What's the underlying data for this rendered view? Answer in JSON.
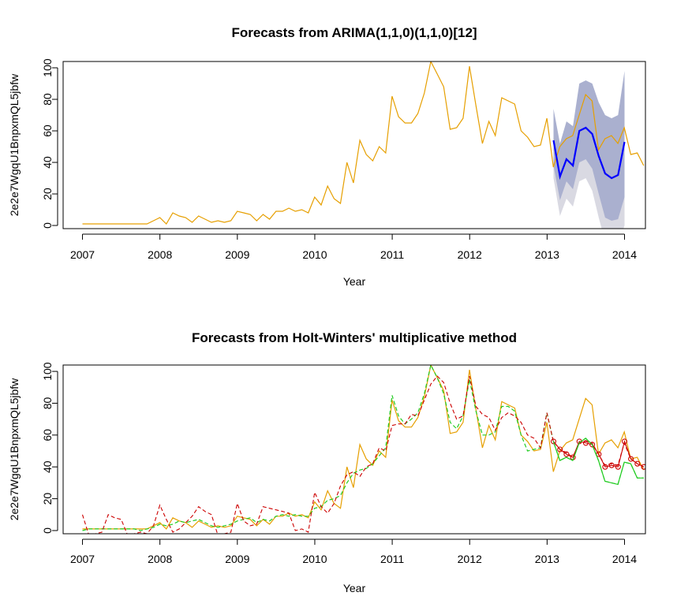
{
  "chart_data": [
    {
      "type": "line",
      "title": "Forecasts from ARIMA(1,1,0)(1,1,0)[12]",
      "xlabel": "Year",
      "ylabel": "2e2e7WgqU1BnpxmQL5jbfw",
      "xlim": [
        2006.75,
        2014.27
      ],
      "ylim": [
        -2,
        104
      ],
      "x_ticks": [
        2007,
        2008,
        2009,
        2010,
        2011,
        2012,
        2013,
        2014
      ],
      "y_ticks": [
        0,
        20,
        40,
        60,
        80,
        100
      ],
      "colors": {
        "observed": "#E69F00",
        "forecast": "#0000FF",
        "band80": "#AAB0CF",
        "band95": "#D9D9E2"
      },
      "series": [
        {
          "x_start": 2007.0,
          "x_step": 0.0833,
          "values": [
            1,
            1,
            1,
            1,
            1,
            1,
            1,
            1,
            1,
            1,
            1,
            3,
            5,
            1,
            8,
            6,
            5,
            2,
            6,
            4,
            2,
            3,
            2,
            3,
            9,
            8,
            7,
            3,
            7,
            4,
            9,
            9,
            11,
            9,
            10,
            8,
            18,
            13,
            25,
            17,
            14,
            40,
            27,
            54,
            45,
            41,
            50,
            46,
            82,
            69,
            65,
            65,
            71,
            84,
            104,
            96,
            88,
            61,
            62,
            68,
            101,
            76,
            52,
            66,
            57,
            81,
            79,
            77,
            60,
            56,
            50,
            51,
            68,
            37,
            50,
            55,
            57,
            70,
            83,
            79,
            48,
            55,
            57,
            52,
            62,
            45,
            46,
            38
          ]
        },
        {
          "x_start": 2013.0833,
          "x_step": 0.0833,
          "values": [
            54,
            31,
            42,
            38,
            60,
            62,
            58,
            44,
            33,
            30,
            32,
            53
          ]
        },
        {
          "x_start": 2013.0833,
          "x_step": 0.0833,
          "values": [
            74,
            52,
            66,
            63,
            90,
            92,
            90,
            78,
            70,
            68,
            70,
            98
          ]
        },
        {
          "x_start": 2013.0833,
          "x_step": 0.0833,
          "values": [
            68,
            44,
            55,
            52,
            80,
            82,
            80,
            68,
            58,
            55,
            57,
            85
          ]
        },
        {
          "x_start": 2013.0833,
          "x_step": 0.0833,
          "values": [
            38,
            16,
            28,
            23,
            40,
            42,
            36,
            20,
            5,
            3,
            4,
            18
          ]
        },
        {
          "x_start": 2013.0833,
          "x_step": 0.0833,
          "values": [
            30,
            6,
            17,
            12,
            28,
            30,
            22,
            5,
            -10,
            -12,
            -12,
            0
          ]
        }
      ]
    },
    {
      "type": "line",
      "title": "Forecasts from Holt-Winters' multiplicative method",
      "xlabel": "Year",
      "ylabel": "2e2e7WgqU1BnpxmQL5jbfw",
      "xlim": [
        2006.75,
        2014.27
      ],
      "ylim": [
        -2,
        104
      ],
      "x_ticks": [
        2007,
        2008,
        2009,
        2010,
        2011,
        2012,
        2013,
        2014
      ],
      "y_ticks": [
        0,
        20,
        40,
        60,
        80,
        100
      ],
      "colors": {
        "observed": "#E69F00",
        "fitted": "#22CC22",
        "red": "#CC0000"
      },
      "series": [
        {
          "x_start": 2007.0,
          "x_step": 0.0833,
          "values": [
            1,
            1,
            1,
            1,
            1,
            1,
            1,
            1,
            1,
            1,
            1,
            3,
            5,
            1,
            8,
            6,
            5,
            2,
            6,
            4,
            2,
            3,
            2,
            3,
            9,
            8,
            7,
            3,
            7,
            4,
            9,
            9,
            11,
            9,
            10,
            8,
            18,
            13,
            25,
            17,
            14,
            40,
            27,
            54,
            45,
            41,
            50,
            46,
            82,
            69,
            65,
            65,
            71,
            84,
            104,
            96,
            88,
            61,
            62,
            68,
            101,
            76,
            52,
            66,
            57,
            81,
            79,
            77,
            60,
            56,
            50,
            51,
            68,
            37,
            50,
            55,
            57,
            70,
            83,
            79,
            48,
            55,
            57,
            52,
            62,
            45,
            46,
            38
          ]
        },
        {
          "x_start": 2007.0,
          "x_step": 0.0833,
          "values": [
            0,
            1,
            1,
            1,
            1,
            1,
            1,
            1,
            1,
            0,
            1,
            2,
            4,
            3,
            4,
            6,
            5,
            6,
            7,
            5,
            3,
            2,
            3,
            4,
            6,
            7,
            8,
            5,
            7,
            6,
            9,
            10,
            9,
            10,
            9,
            9,
            14,
            15,
            19,
            20,
            22,
            30,
            36,
            38,
            39,
            42,
            47,
            52,
            85,
            72,
            67,
            70,
            74,
            86,
            104,
            96,
            86,
            68,
            64,
            72,
            95,
            75,
            60,
            60,
            62,
            78,
            78,
            75,
            60,
            50,
            51,
            52,
            74,
            56,
            44,
            46,
            44,
            55,
            58,
            54,
            44,
            31,
            30,
            29,
            43,
            42,
            33,
            33
          ]
        },
        {
          "x_start": 2007.0,
          "x_step": 0.0833,
          "values": [
            10,
            -3,
            -2,
            -1,
            10,
            8,
            7,
            -3,
            -2,
            -1,
            -2,
            3,
            16,
            7,
            -1,
            1,
            5,
            9,
            15,
            12,
            10,
            -3,
            -2,
            -1,
            17,
            6,
            3,
            4,
            15,
            14,
            13,
            12,
            11,
            0,
            1,
            -1,
            24,
            15,
            11,
            17,
            28,
            35,
            37,
            34,
            40,
            42,
            52,
            50,
            66,
            67,
            67,
            73,
            72,
            82,
            92,
            97,
            93,
            80,
            70,
            72,
            97,
            78,
            73,
            71,
            63,
            71,
            74,
            72,
            68,
            60,
            58,
            52,
            74,
            56,
            51,
            49,
            46,
            55,
            56,
            55,
            48,
            41,
            42,
            41,
            55,
            45,
            42,
            40
          ]
        },
        {
          "x_start": 2013.0833,
          "x_step": 0.0833,
          "values": [
            56,
            51,
            48,
            46,
            56,
            55,
            54,
            48,
            40,
            41,
            40,
            56,
            45,
            42,
            40
          ]
        }
      ]
    }
  ]
}
